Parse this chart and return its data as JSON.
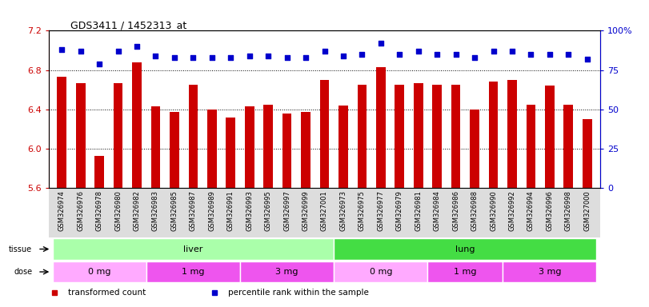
{
  "title": "GDS3411 / 1452313_at",
  "samples": [
    "GSM326974",
    "GSM326976",
    "GSM326978",
    "GSM326980",
    "GSM326982",
    "GSM326983",
    "GSM326985",
    "GSM326987",
    "GSM326989",
    "GSM326991",
    "GSM326993",
    "GSM326995",
    "GSM326997",
    "GSM326999",
    "GSM327001",
    "GSM326973",
    "GSM326975",
    "GSM326977",
    "GSM326979",
    "GSM326981",
    "GSM326984",
    "GSM326986",
    "GSM326988",
    "GSM326990",
    "GSM326992",
    "GSM326994",
    "GSM326996",
    "GSM326998",
    "GSM327000"
  ],
  "bar_values": [
    6.73,
    6.67,
    5.93,
    6.67,
    6.88,
    6.43,
    6.37,
    6.65,
    6.4,
    6.32,
    6.43,
    6.45,
    6.36,
    6.37,
    6.7,
    6.44,
    6.65,
    6.83,
    6.65,
    6.67,
    6.65,
    6.65,
    6.4,
    6.68,
    6.7,
    6.45,
    6.64,
    6.45,
    6.3
  ],
  "percentile_values": [
    88,
    87,
    79,
    87,
    90,
    84,
    83,
    83,
    83,
    83,
    84,
    84,
    83,
    83,
    87,
    84,
    85,
    92,
    85,
    87,
    85,
    85,
    83,
    87,
    87,
    85,
    85,
    85,
    82
  ],
  "bar_color": "#cc0000",
  "percentile_color": "#0000cc",
  "ylim_left": [
    5.6,
    7.2
  ],
  "ylim_right": [
    0,
    100
  ],
  "yticks_left": [
    5.6,
    6.0,
    6.4,
    6.8,
    7.2
  ],
  "yticks_right": [
    0,
    25,
    50,
    75,
    100
  ],
  "ytick_labels_right": [
    "0",
    "25",
    "50",
    "75",
    "100%"
  ],
  "tissue_groups": [
    {
      "label": "liver",
      "start": 0,
      "end": 15,
      "color": "#aaffaa"
    },
    {
      "label": "lung",
      "start": 15,
      "end": 29,
      "color": "#44dd44"
    }
  ],
  "dose_groups": [
    {
      "label": "0 mg",
      "start": 0,
      "end": 5,
      "color": "#ffaaff"
    },
    {
      "label": "1 mg",
      "start": 5,
      "end": 10,
      "color": "#ee55ee"
    },
    {
      "label": "3 mg",
      "start": 10,
      "end": 15,
      "color": "#ee55ee"
    },
    {
      "label": "0 mg",
      "start": 15,
      "end": 20,
      "color": "#ffaaff"
    },
    {
      "label": "1 mg",
      "start": 20,
      "end": 24,
      "color": "#ee55ee"
    },
    {
      "label": "3 mg",
      "start": 24,
      "end": 29,
      "color": "#ee55ee"
    }
  ],
  "legend_items": [
    {
      "label": "transformed count",
      "color": "#cc0000",
      "marker": "s"
    },
    {
      "label": "percentile rank within the sample",
      "color": "#0000cc",
      "marker": "s"
    }
  ],
  "background_color": "#ffffff",
  "tick_label_fontsize": 6.0,
  "bar_width": 0.5,
  "n_samples": 29
}
